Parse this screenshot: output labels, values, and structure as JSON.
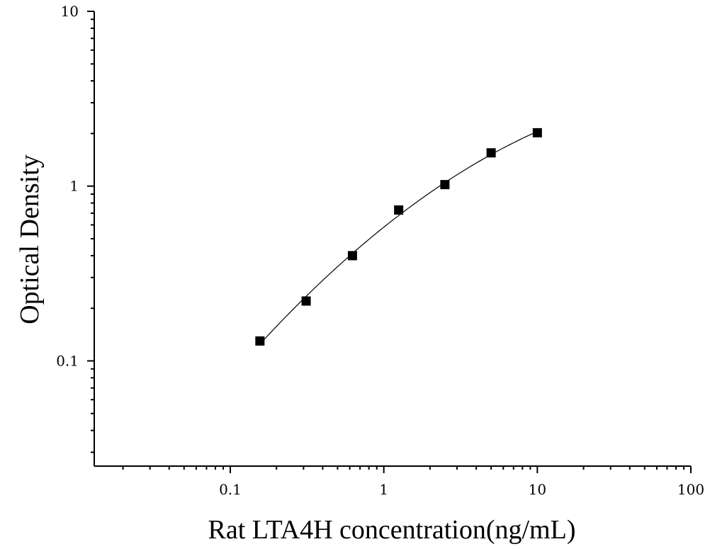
{
  "chart_data": {
    "type": "scatter",
    "xlabel": "Rat LTA4H concentration(ng/mL)",
    "ylabel": "Optical Density",
    "xscale": "log",
    "yscale": "log",
    "xlim": [
      0.013,
      100
    ],
    "ylim": [
      0.025,
      10
    ],
    "x_ticks": [
      {
        "value": 0.1,
        "label": "0.1"
      },
      {
        "value": 1,
        "label": "1"
      },
      {
        "value": 10,
        "label": "10"
      },
      {
        "value": 100,
        "label": "100"
      }
    ],
    "y_ticks": [
      {
        "value": 0.1,
        "label": "0.1"
      },
      {
        "value": 1,
        "label": "1"
      },
      {
        "value": 10,
        "label": "10"
      }
    ],
    "grid": false,
    "series": [
      {
        "marker": "square",
        "color": "#000000",
        "x": [
          0.156,
          0.312,
          0.625,
          1.25,
          2.5,
          5,
          10
        ],
        "y": [
          0.13,
          0.22,
          0.4,
          0.73,
          1.02,
          1.55,
          2.02
        ]
      }
    ],
    "fit_curve": true
  }
}
